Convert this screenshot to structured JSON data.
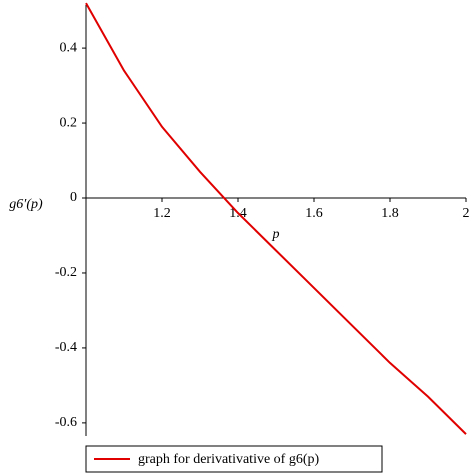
{
  "chart_data": {
    "type": "line",
    "x_label": "p",
    "y_label": "g6′(p)",
    "x": [
      1.0,
      1.1,
      1.2,
      1.3,
      1.4,
      1.5,
      1.6,
      1.7,
      1.8,
      1.9,
      2.0
    ],
    "series": [
      {
        "name": "graph for derivativative of g6(p)",
        "color": "#e00000",
        "values": [
          0.52,
          0.34,
          0.19,
          0.07,
          -0.04,
          -0.14,
          -0.24,
          -0.34,
          -0.44,
          -0.53,
          -0.63
        ]
      }
    ],
    "xlim": [
      1,
      2
    ],
    "ylim": [
      -0.635,
      0.515
    ],
    "xticks": [
      1.2,
      1.4,
      1.6,
      1.8,
      2
    ],
    "yticks": [
      0.4,
      0.2,
      0,
      -0.2,
      -0.4,
      -0.6
    ],
    "legend": "bottom"
  }
}
